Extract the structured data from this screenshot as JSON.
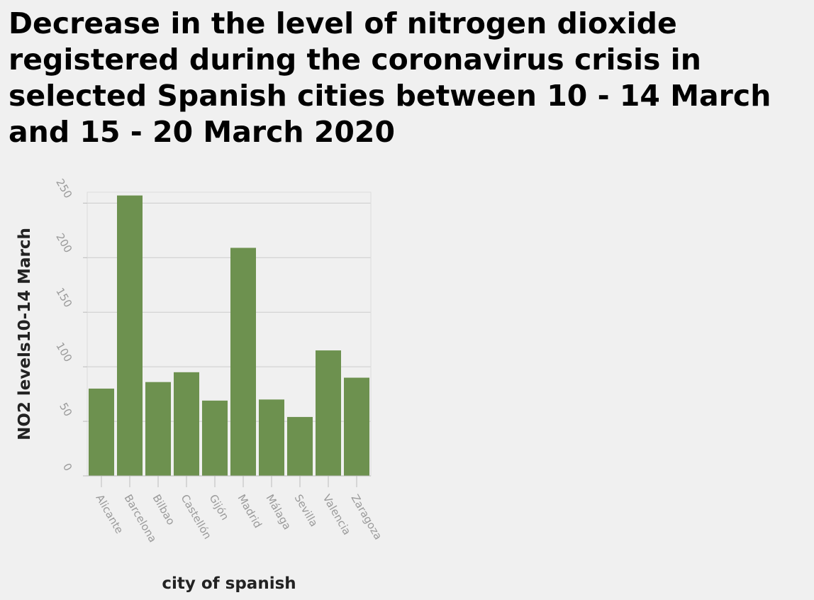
{
  "chart_data": {
    "type": "bar",
    "title": "Decrease in the level of nitrogen dioxide registered during the coronavirus crisis in selected Spanish cities between 10 - 14 March and 15 - 20 March 2020",
    "xlabel": "city of spanish",
    "ylabel": "NO2 levels10-14 March",
    "categories": [
      "Alicante",
      "Barcelona",
      "Bilbao",
      "Castellón",
      "Gijón",
      "Madrid",
      "Málaga",
      "Sevilla",
      "Valencia",
      "Zaragoza"
    ],
    "values": [
      80,
      257,
      86,
      95,
      69,
      209,
      70,
      54,
      115,
      90
    ],
    "ylim": [
      0,
      260
    ],
    "yticks": [
      0,
      50,
      100,
      150,
      200,
      250
    ],
    "grid": true,
    "legend": "none",
    "bar_color": "#6d914f",
    "grid_color": "#cccccc",
    "axis_color": "#bbbbbb"
  }
}
